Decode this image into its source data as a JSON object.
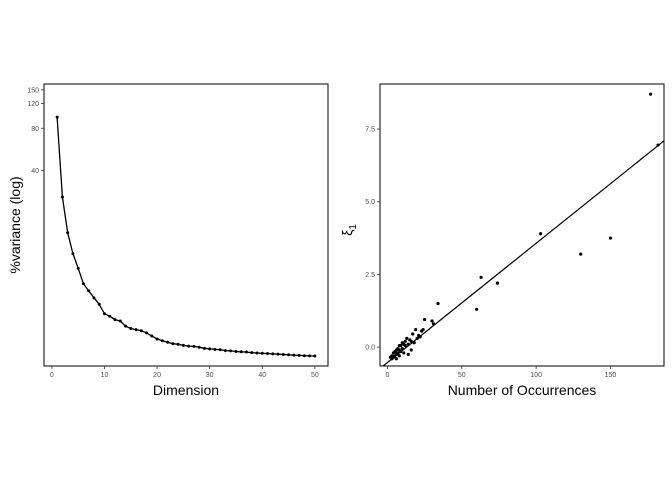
{
  "chart_data": [
    {
      "type": "line",
      "xlabel": "Dimension",
      "ylabel": "%variance (log)",
      "xlim": [
        -1.5,
        52.5
      ],
      "xticks": [
        0,
        10,
        20,
        30,
        40,
        50
      ],
      "y_scale": "log",
      "yticks": [
        40,
        80,
        120,
        150
      ],
      "grid": false,
      "x": [
        1,
        2,
        3,
        4,
        5,
        6,
        7,
        8,
        9,
        10,
        11,
        12,
        13,
        14,
        15,
        16,
        17,
        18,
        19,
        20,
        21,
        22,
        23,
        24,
        25,
        26,
        27,
        28,
        29,
        30,
        31,
        32,
        33,
        34,
        35,
        36,
        37,
        38,
        39,
        40,
        41,
        42,
        43,
        44,
        45,
        46,
        47,
        48,
        49,
        50
      ],
      "y": [
        96,
        26,
        14.5,
        10.3,
        8.1,
        6.3,
        5.6,
        5.0,
        4.5,
        3.85,
        3.7,
        3.5,
        3.42,
        3.15,
        3.03,
        2.97,
        2.92,
        2.82,
        2.68,
        2.55,
        2.48,
        2.42,
        2.36,
        2.34,
        2.3,
        2.27,
        2.26,
        2.23,
        2.19,
        2.17,
        2.15,
        2.14,
        2.11,
        2.1,
        2.08,
        2.07,
        2.06,
        2.04,
        2.03,
        2.02,
        2.01,
        2.0,
        1.99,
        1.98,
        1.97,
        1.96,
        1.95,
        1.94,
        1.935,
        1.93
      ]
    },
    {
      "type": "scatter",
      "xlabel": "Number of Occurrences",
      "ylabel": "ξ",
      "ylabel_sub": "1",
      "xlim": [
        -5,
        186
      ],
      "xticks": [
        0,
        50,
        100,
        150
      ],
      "ylim": [
        -0.65,
        9.05
      ],
      "yticks": [
        0.0,
        2.5,
        5.0,
        7.5
      ],
      "ytick_labels": [
        "0.0",
        "2.5",
        "5.0",
        "7.5"
      ],
      "grid": false,
      "fit_line": {
        "intercept": -0.53,
        "slope": 0.041
      },
      "points": [
        [
          177,
          8.7
        ],
        [
          182,
          6.95
        ],
        [
          103,
          3.9
        ],
        [
          150,
          3.75
        ],
        [
          130,
          3.2
        ],
        [
          63,
          2.4
        ],
        [
          74,
          2.2
        ],
        [
          60,
          1.3
        ],
        [
          34,
          1.5
        ],
        [
          30,
          0.9
        ],
        [
          31,
          0.8
        ],
        [
          25,
          0.95
        ],
        [
          23,
          0.55
        ],
        [
          22,
          0.35
        ],
        [
          20,
          0.3
        ],
        [
          19,
          0.6
        ],
        [
          17,
          0.45
        ],
        [
          16,
          0.2
        ],
        [
          15,
          0.25
        ],
        [
          14,
          0.1
        ],
        [
          13,
          0.3
        ],
        [
          12,
          0.05
        ],
        [
          12,
          0.2
        ],
        [
          11,
          0.1
        ],
        [
          10,
          -0.05
        ],
        [
          10,
          0.15
        ],
        [
          9,
          0.05
        ],
        [
          9,
          -0.15
        ],
        [
          8,
          -0.1
        ],
        [
          8,
          0.05
        ],
        [
          7,
          -0.2
        ],
        [
          7,
          -0.05
        ],
        [
          6,
          -0.25
        ],
        [
          6,
          -0.1
        ],
        [
          5,
          -0.3
        ],
        [
          5,
          -0.15
        ],
        [
          4,
          -0.35
        ],
        [
          4,
          -0.2
        ],
        [
          3,
          -0.3
        ],
        [
          3,
          -0.4
        ],
        [
          2,
          -0.35
        ],
        [
          6,
          -0.4
        ],
        [
          8,
          -0.3
        ],
        [
          11,
          -0.2
        ],
        [
          14,
          -0.25
        ],
        [
          16,
          -0.1
        ],
        [
          18,
          0.15
        ],
        [
          21,
          0.4
        ],
        [
          24,
          0.6
        ]
      ]
    }
  ]
}
